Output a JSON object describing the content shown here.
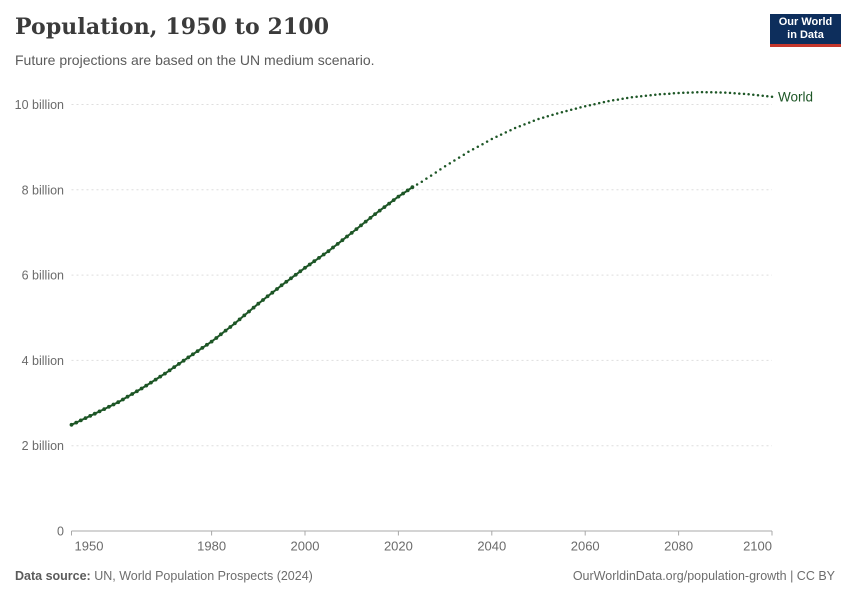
{
  "header": {
    "title": "Population, 1950 to 2100",
    "subtitle": "Future projections are based on the UN medium scenario.",
    "logo": {
      "line1": "Our World",
      "line2": "in Data"
    }
  },
  "chart_data": {
    "type": "line",
    "title": "Population, 1950 to 2100",
    "subtitle": "Future projections are based on the UN medium scenario.",
    "unit": "billion people",
    "xlim": [
      1950,
      2100
    ],
    "ylim": [
      0,
      10.6
    ],
    "grid": "horizontal-dashed",
    "legend_position": "end-of-line",
    "x_ticks": [
      1950,
      1980,
      2000,
      2020,
      2040,
      2060,
      2080,
      2100
    ],
    "y_ticks": [
      {
        "value": 0,
        "label": "0"
      },
      {
        "value": 2,
        "label": "2 billion"
      },
      {
        "value": 4,
        "label": "4 billion"
      },
      {
        "value": 6,
        "label": "6 billion"
      },
      {
        "value": 8,
        "label": "8 billion"
      },
      {
        "value": 10,
        "label": "10 billion"
      }
    ],
    "series": [
      {
        "name": "World",
        "color": "#1d5626",
        "style_history": "beaded-line",
        "style_projection": "dotted",
        "projection_from": 2023,
        "points": [
          [
            1950,
            2.49
          ],
          [
            1955,
            2.75
          ],
          [
            1960,
            3.02
          ],
          [
            1965,
            3.34
          ],
          [
            1970,
            3.69
          ],
          [
            1975,
            4.07
          ],
          [
            1980,
            4.44
          ],
          [
            1985,
            4.87
          ],
          [
            1990,
            5.33
          ],
          [
            1995,
            5.76
          ],
          [
            2000,
            6.17
          ],
          [
            2005,
            6.56
          ],
          [
            2010,
            6.99
          ],
          [
            2015,
            7.43
          ],
          [
            2020,
            7.84
          ],
          [
            2023,
            8.06
          ],
          [
            2025,
            8.19
          ],
          [
            2030,
            8.55
          ],
          [
            2035,
            8.89
          ],
          [
            2040,
            9.19
          ],
          [
            2045,
            9.45
          ],
          [
            2050,
            9.66
          ],
          [
            2055,
            9.82
          ],
          [
            2060,
            9.96
          ],
          [
            2065,
            10.08
          ],
          [
            2070,
            10.17
          ],
          [
            2075,
            10.23
          ],
          [
            2080,
            10.27
          ],
          [
            2085,
            10.29
          ],
          [
            2090,
            10.28
          ],
          [
            2095,
            10.24
          ],
          [
            2100,
            10.18
          ]
        ]
      }
    ]
  },
  "footer": {
    "source_label": "Data source:",
    "source_text": " UN, World Population Prospects (2024)",
    "credit": "OurWorldinData.org/population-growth | CC BY"
  },
  "colors": {
    "series_world": "#1d5626",
    "logo_bg": "#0d2e5c",
    "logo_accent": "#c5372c",
    "grid": "#dedede",
    "axis": "#a8a8a8",
    "tick_label": "#6b6b6b",
    "title": "#3b3b3b",
    "subtitle": "#5b5b5b"
  }
}
